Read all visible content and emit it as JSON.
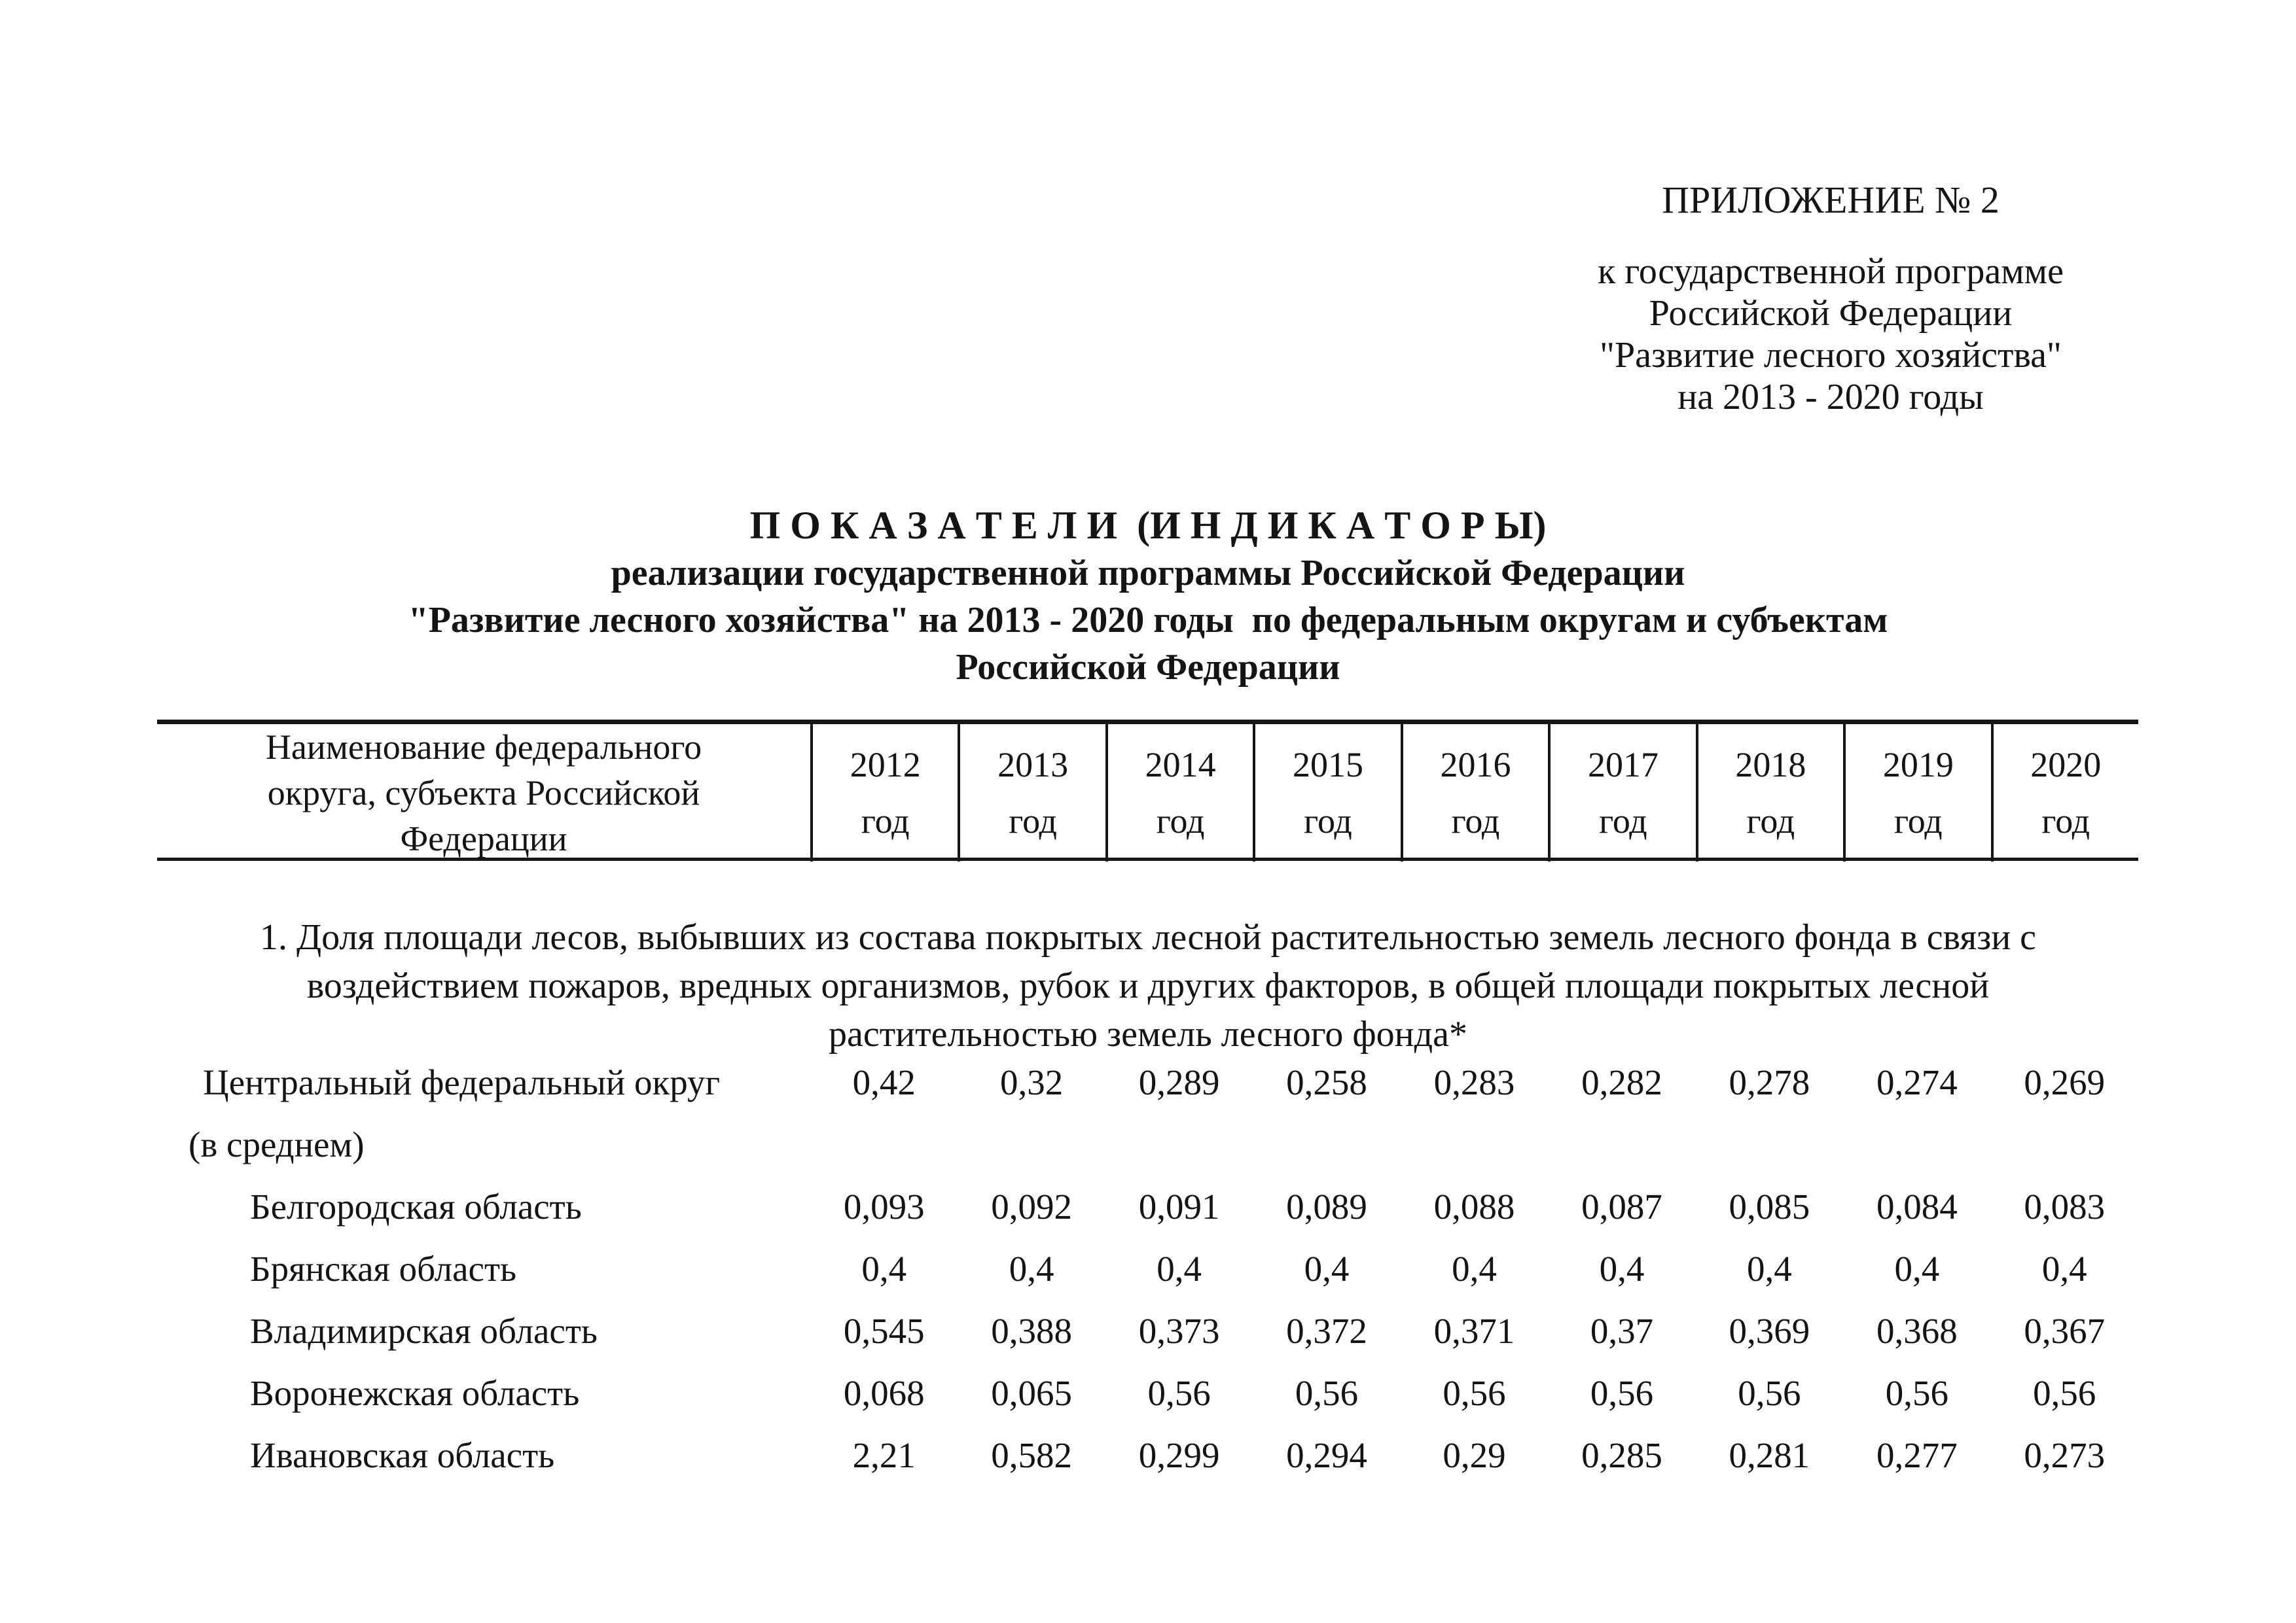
{
  "page": {
    "background": "#ffffff",
    "text_color": "#141414"
  },
  "appendix": {
    "line1": "ПРИЛОЖЕНИЕ № 2",
    "line2": "к государственной программе",
    "line3": "Российской Федерации",
    "line4": "\"Развитие лесного хозяйства\"",
    "line5": "на 2013 - 2020 годы"
  },
  "title": {
    "line1": "П О К А З А Т Е Л И  (И Н Д И К А Т О Р Ы)",
    "line2": "реализации государственной программы Российской Федерации",
    "line3": "\"Развитие лесного хозяйства\" на 2013 - 2020 годы  по федеральным округам и субъектам",
    "line4": "Российской Федерации"
  },
  "table": {
    "name_header": "Наименование федерального округа, субъекта Российской Федерации",
    "year_suffix": "год",
    "years": [
      "2012",
      "2013",
      "2014",
      "2015",
      "2016",
      "2017",
      "2018",
      "2019",
      "2020"
    ],
    "section_title": "1. Доля площади лесов, выбывших из состава покрытых лесной растительностью земель лесного фонда в связи с воздействием пожаров, вредных организмов, рубок и других факторов, в общей площади покрытых лесной растительностью земель лесного фонда*",
    "rows": [
      {
        "name": "Центральный федеральный округ",
        "name2": "(в среднем)",
        "indent": false,
        "values": [
          "0,42",
          "0,32",
          "0,289",
          "0,258",
          "0,283",
          "0,282",
          "0,278",
          "0,274",
          "0,269"
        ]
      },
      {
        "name": "Белгородская область",
        "name2": "",
        "indent": true,
        "values": [
          "0,093",
          "0,092",
          "0,091",
          "0,089",
          "0,088",
          "0,087",
          "0,085",
          "0,084",
          "0,083"
        ]
      },
      {
        "name": "Брянская область",
        "name2": "",
        "indent": true,
        "values": [
          "0,4",
          "0,4",
          "0,4",
          "0,4",
          "0,4",
          "0,4",
          "0,4",
          "0,4",
          "0,4"
        ]
      },
      {
        "name": "Владимирская область",
        "name2": "",
        "indent": true,
        "values": [
          "0,545",
          "0,388",
          "0,373",
          "0,372",
          "0,371",
          "0,37",
          "0,369",
          "0,368",
          "0,367"
        ]
      },
      {
        "name": "Воронежская область",
        "name2": "",
        "indent": true,
        "values": [
          "0,068",
          "0,065",
          "0,56",
          "0,56",
          "0,56",
          "0,56",
          "0,56",
          "0,56",
          "0,56"
        ]
      },
      {
        "name": "Ивановская область",
        "name2": "",
        "indent": true,
        "values": [
          "2,21",
          "0,582",
          "0,299",
          "0,294",
          "0,29",
          "0,285",
          "0,281",
          "0,277",
          "0,273"
        ]
      }
    ]
  }
}
